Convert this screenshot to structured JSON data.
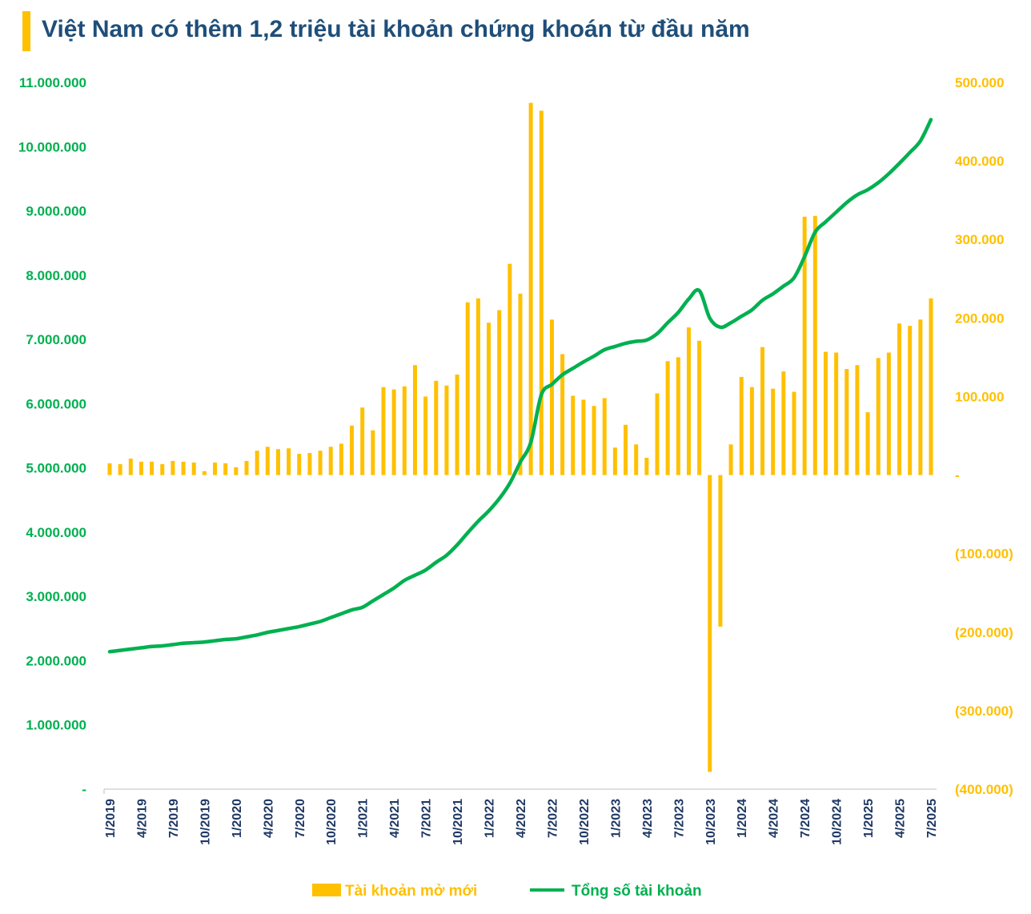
{
  "chart_data": {
    "type": "bar+line",
    "title": "Việt Nam có thêm 1,2 triệu tài khoản chứng khoán từ đầu năm",
    "categories": [
      "1/2019",
      "2/2019",
      "3/2019",
      "4/2019",
      "5/2019",
      "6/2019",
      "7/2019",
      "8/2019",
      "9/2019",
      "10/2019",
      "11/2019",
      "12/2019",
      "1/2020",
      "2/2020",
      "3/2020",
      "4/2020",
      "5/2020",
      "6/2020",
      "7/2020",
      "8/2020",
      "9/2020",
      "10/2020",
      "11/2020",
      "12/2020",
      "1/2021",
      "2/2021",
      "3/2021",
      "4/2021",
      "5/2021",
      "6/2021",
      "7/2021",
      "8/2021",
      "9/2021",
      "10/2021",
      "11/2021",
      "12/2021",
      "1/2022",
      "2/2022",
      "3/2022",
      "4/2022",
      "5/2022",
      "6/2022",
      "7/2022",
      "8/2022",
      "9/2022",
      "10/2022",
      "11/2022",
      "12/2022",
      "1/2023",
      "2/2023",
      "3/2023",
      "4/2023",
      "5/2023",
      "6/2023",
      "7/2023",
      "8/2023",
      "9/2023",
      "10/2023",
      "11/2023",
      "12/2023",
      "1/2024",
      "2/2024",
      "3/2024",
      "4/2024",
      "5/2024",
      "6/2024",
      "7/2024",
      "8/2024",
      "9/2024",
      "10/2024",
      "11/2024",
      "12/2024",
      "1/2025",
      "2/2025",
      "3/2025",
      "4/2025",
      "5/2025",
      "6/2025",
      "7/2025"
    ],
    "x_tick_labels": [
      "1/2019",
      "4/2019",
      "7/2019",
      "10/2019",
      "1/2020",
      "4/2020",
      "7/2020",
      "10/2020",
      "1/2021",
      "4/2021",
      "7/2021",
      "10/2021",
      "1/2022",
      "4/2022",
      "7/2022",
      "10/2022",
      "1/2023",
      "4/2023",
      "7/2023",
      "10/2023",
      "1/2024",
      "4/2024",
      "7/2024",
      "10/2024",
      "1/2025",
      "4/2025",
      "7/2025"
    ],
    "series": [
      {
        "name": "Tài khoản mở mới",
        "type": "bar",
        "axis": "right",
        "color": "#FFC000",
        "values": [
          15000,
          14000,
          21000,
          17000,
          17000,
          14000,
          18000,
          17000,
          16000,
          5000,
          16000,
          15000,
          10000,
          18000,
          31000,
          36000,
          33000,
          34000,
          27000,
          28000,
          31000,
          36000,
          40000,
          63000,
          86000,
          57000,
          112000,
          109000,
          113000,
          140000,
          100000,
          120000,
          114000,
          128000,
          220000,
          225000,
          194000,
          210000,
          269000,
          231000,
          474000,
          464000,
          198000,
          154000,
          101000,
          96000,
          88000,
          98000,
          35000,
          64000,
          39000,
          22000,
          104000,
          145000,
          150000,
          188000,
          171000,
          -378000,
          -193000,
          39000,
          125000,
          112000,
          163000,
          110000,
          132000,
          106000,
          329000,
          330000,
          157000,
          156000,
          135000,
          140000,
          80000,
          149000,
          156000,
          193000,
          190000,
          198000,
          225000
        ]
      },
      {
        "name": "Tổng số tài khoản",
        "type": "line",
        "axis": "left",
        "color": "#00B050",
        "values": [
          2140000,
          2160000,
          2180000,
          2200000,
          2220000,
          2230000,
          2250000,
          2270000,
          2280000,
          2290000,
          2310000,
          2330000,
          2340000,
          2370000,
          2400000,
          2440000,
          2470000,
          2500000,
          2530000,
          2570000,
          2610000,
          2670000,
          2730000,
          2790000,
          2830000,
          2930000,
          3030000,
          3130000,
          3250000,
          3330000,
          3410000,
          3530000,
          3640000,
          3800000,
          3990000,
          4170000,
          4330000,
          4520000,
          4760000,
          5090000,
          5400000,
          6140000,
          6300000,
          6450000,
          6550000,
          6650000,
          6740000,
          6840000,
          6890000,
          6940000,
          6970000,
          6990000,
          7090000,
          7260000,
          7420000,
          7630000,
          7760000,
          7330000,
          7190000,
          7260000,
          7360000,
          7460000,
          7610000,
          7710000,
          7830000,
          7960000,
          8290000,
          8670000,
          8830000,
          8980000,
          9130000,
          9250000,
          9330000,
          9440000,
          9580000,
          9740000,
          9910000,
          10090000,
          10420000
        ]
      }
    ],
    "left_axis": {
      "ylim": [
        0,
        11000000
      ],
      "tick_labels": [
        "-",
        "1.000.000",
        "2.000.000",
        "3.000.000",
        "4.000.000",
        "5.000.000",
        "6.000.000",
        "7.000.000",
        "8.000.000",
        "9.000.000",
        "10.000.000",
        "11.000.000"
      ],
      "color": "#00B050"
    },
    "right_axis": {
      "ylim": [
        -400000,
        500000
      ],
      "tick_labels": [
        "(400.000)",
        "(300.000)",
        "(200.000)",
        "(100.000)",
        "-",
        "100.000",
        "200.000",
        "300.000",
        "400.000",
        "500.000"
      ],
      "color": "#FFC000"
    },
    "grid": false,
    "legend": {
      "placement": "bottom",
      "items": [
        "Tài khoản mở mới",
        "Tổng số tài khoản"
      ]
    },
    "title_color": "#1F4E79",
    "accent_color": "#FFC000"
  }
}
